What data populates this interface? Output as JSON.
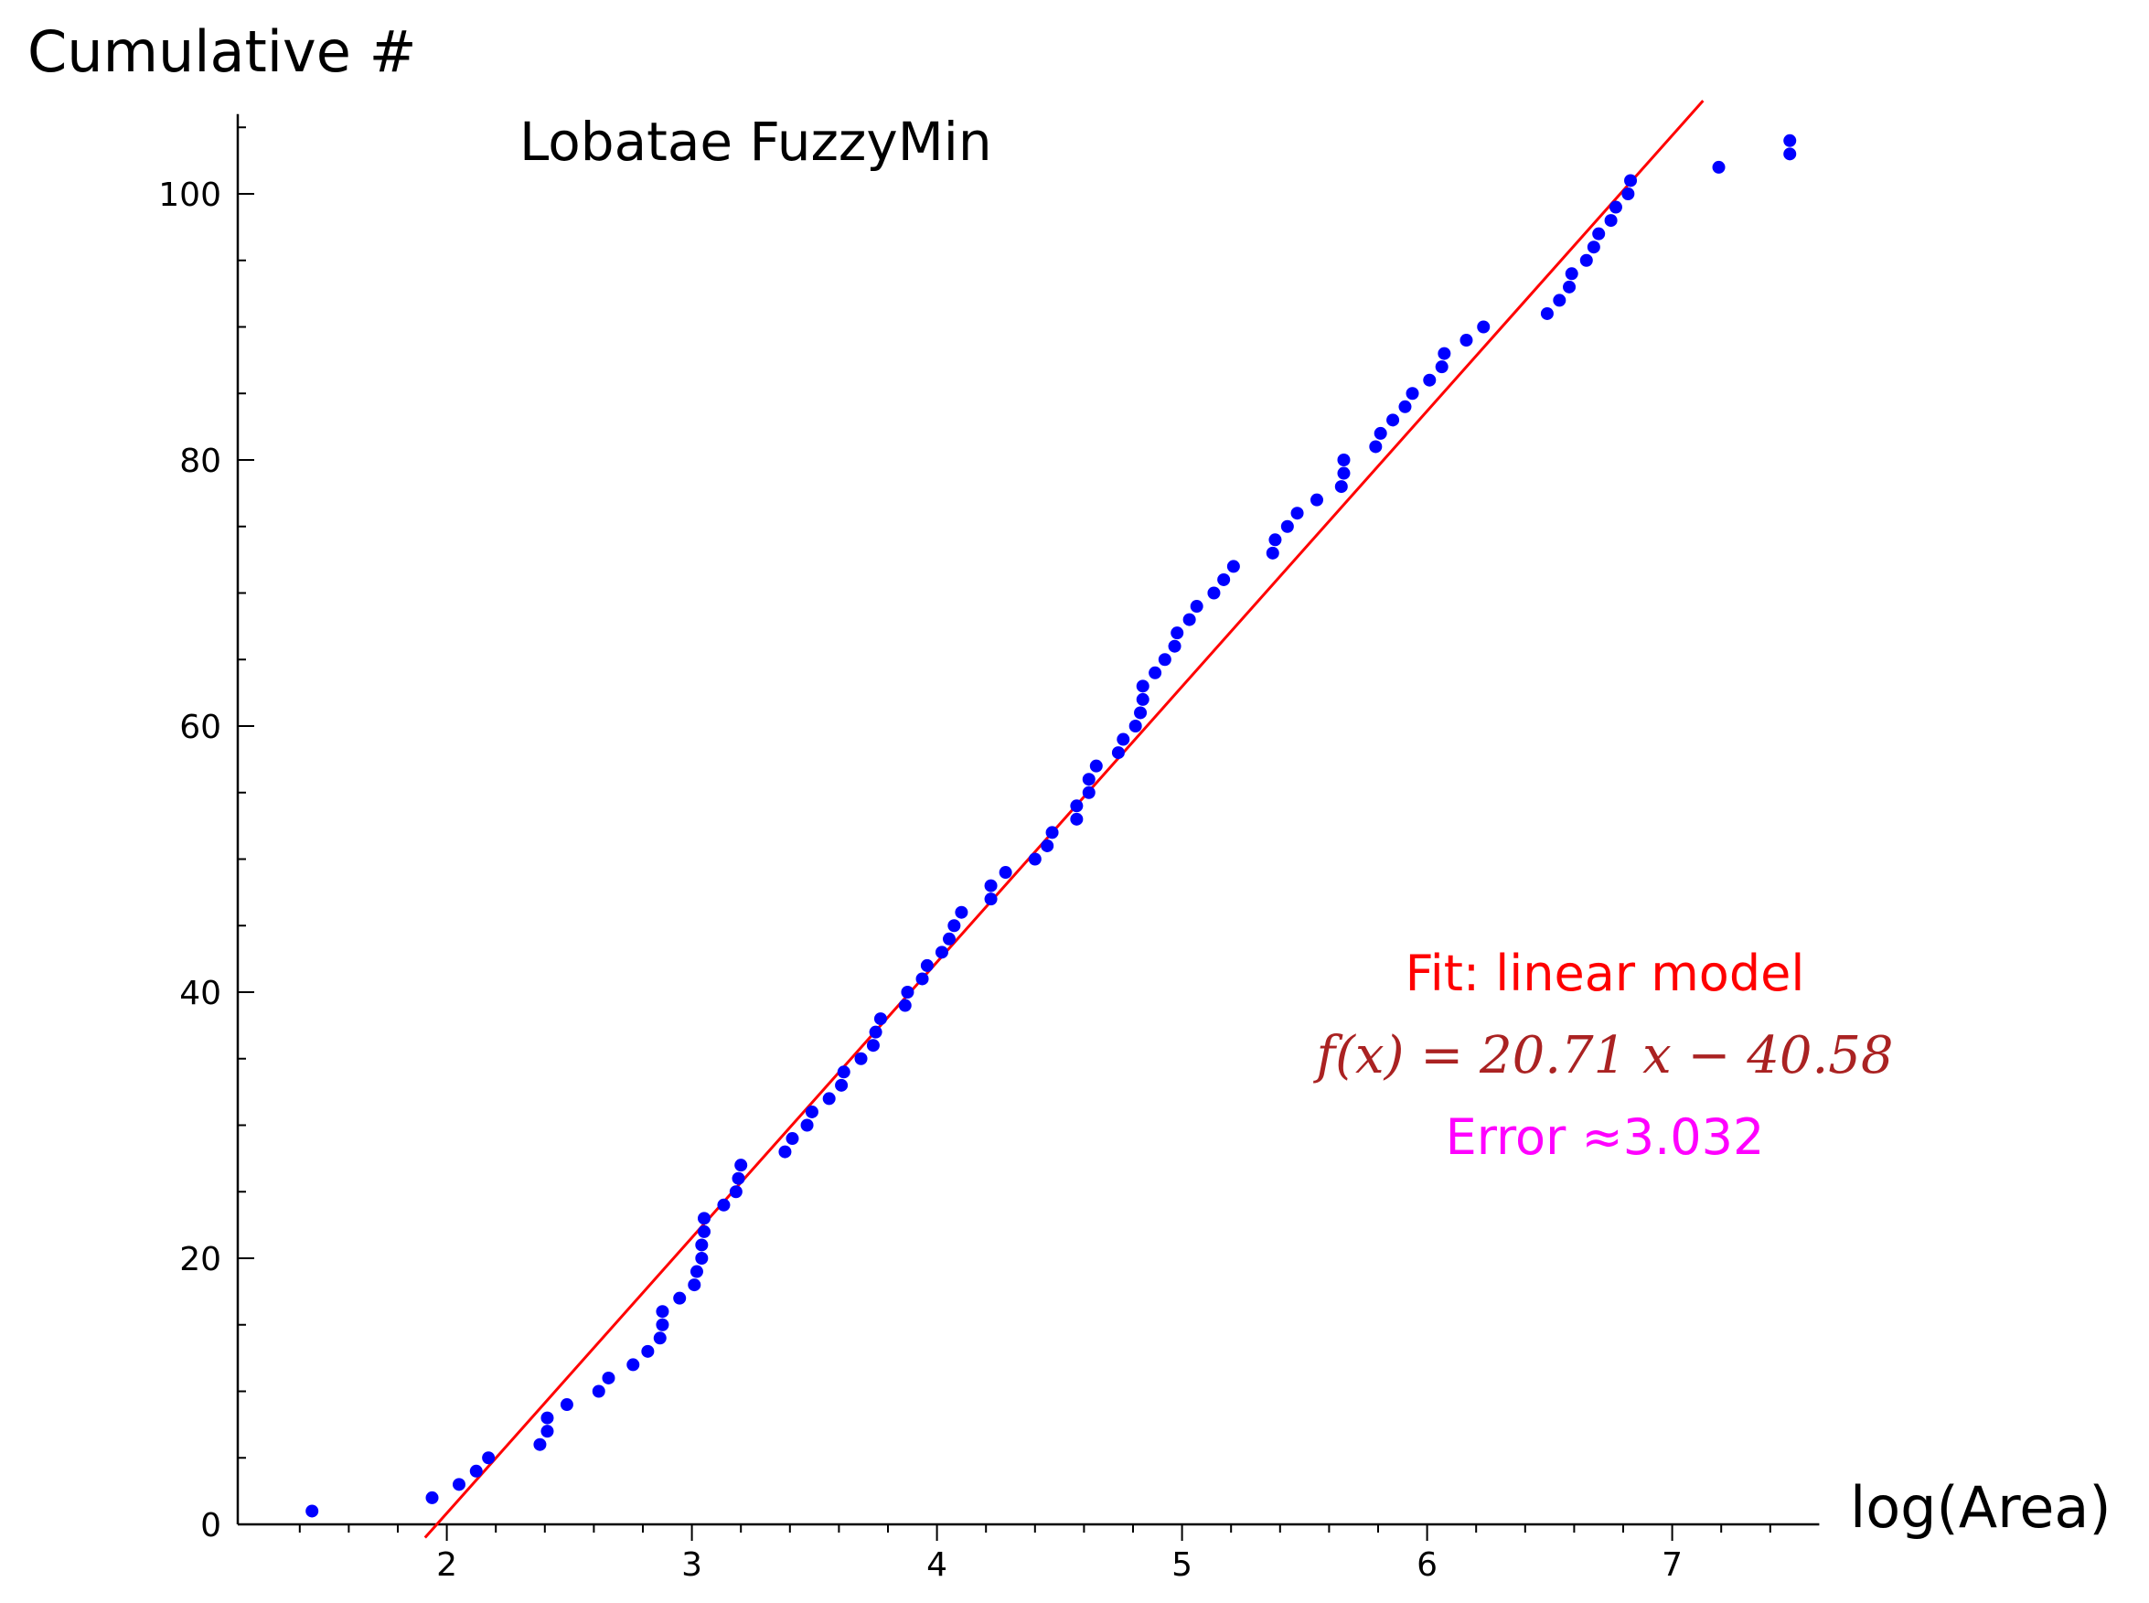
{
  "chart_data": {
    "type": "scatter",
    "title": "Lobatae FuzzyMin",
    "xlabel": "log(Area)",
    "ylabel": "Cumulative #",
    "xlim": [
      1.3,
      7.6
    ],
    "ylim": [
      0,
      106
    ],
    "x_ticks": [
      2,
      3,
      4,
      5,
      6,
      7
    ],
    "y_ticks": [
      0,
      20,
      40,
      60,
      80,
      100
    ],
    "grid": false,
    "colors": {
      "points": "#0000ff",
      "fit_line": "#ff0000",
      "fit_label": "#ff0000",
      "formula": "#aa2222",
      "error": "#ff00ff",
      "axes": "#000000"
    },
    "fit": {
      "label": "Fit: linear model",
      "formula": "f(x) = 20.71 x − 40.58",
      "slope": 20.71,
      "intercept": -40.58,
      "error_label": "Error ≈3.032"
    },
    "series": [
      {
        "points": [
          [
            1.45,
            1
          ],
          [
            1.94,
            2
          ],
          [
            2.05,
            3
          ],
          [
            2.12,
            4
          ],
          [
            2.17,
            5
          ],
          [
            2.38,
            6
          ],
          [
            2.41,
            7
          ],
          [
            2.41,
            8
          ],
          [
            2.49,
            9
          ],
          [
            2.62,
            10
          ],
          [
            2.66,
            11
          ],
          [
            2.76,
            12
          ],
          [
            2.82,
            13
          ],
          [
            2.87,
            14
          ],
          [
            2.88,
            15
          ],
          [
            2.88,
            16
          ],
          [
            2.95,
            17
          ],
          [
            3.01,
            18
          ],
          [
            3.02,
            19
          ],
          [
            3.04,
            20
          ],
          [
            3.04,
            21
          ],
          [
            3.05,
            22
          ],
          [
            3.05,
            23
          ],
          [
            3.13,
            24
          ],
          [
            3.18,
            25
          ],
          [
            3.19,
            26
          ],
          [
            3.2,
            27
          ],
          [
            3.38,
            28
          ],
          [
            3.41,
            29
          ],
          [
            3.47,
            30
          ],
          [
            3.49,
            31
          ],
          [
            3.56,
            32
          ],
          [
            3.61,
            33
          ],
          [
            3.62,
            34
          ],
          [
            3.69,
            35
          ],
          [
            3.74,
            36
          ],
          [
            3.75,
            37
          ],
          [
            3.77,
            38
          ],
          [
            3.87,
            39
          ],
          [
            3.88,
            40
          ],
          [
            3.94,
            41
          ],
          [
            3.96,
            42
          ],
          [
            4.02,
            43
          ],
          [
            4.05,
            44
          ],
          [
            4.07,
            45
          ],
          [
            4.1,
            46
          ],
          [
            4.22,
            47
          ],
          [
            4.22,
            48
          ],
          [
            4.28,
            49
          ],
          [
            4.4,
            50
          ],
          [
            4.45,
            51
          ],
          [
            4.47,
            52
          ],
          [
            4.57,
            53
          ],
          [
            4.57,
            54
          ],
          [
            4.62,
            55
          ],
          [
            4.62,
            56
          ],
          [
            4.65,
            57
          ],
          [
            4.74,
            58
          ],
          [
            4.76,
            59
          ],
          [
            4.81,
            60
          ],
          [
            4.83,
            61
          ],
          [
            4.84,
            62
          ],
          [
            4.84,
            63
          ],
          [
            4.89,
            64
          ],
          [
            4.93,
            65
          ],
          [
            4.97,
            66
          ],
          [
            4.98,
            67
          ],
          [
            5.03,
            68
          ],
          [
            5.06,
            69
          ],
          [
            5.13,
            70
          ],
          [
            5.17,
            71
          ],
          [
            5.21,
            72
          ],
          [
            5.37,
            73
          ],
          [
            5.38,
            74
          ],
          [
            5.43,
            75
          ],
          [
            5.47,
            76
          ],
          [
            5.55,
            77
          ],
          [
            5.65,
            78
          ],
          [
            5.66,
            79
          ],
          [
            5.66,
            80
          ],
          [
            5.79,
            81
          ],
          [
            5.81,
            82
          ],
          [
            5.86,
            83
          ],
          [
            5.91,
            84
          ],
          [
            5.94,
            85
          ],
          [
            6.01,
            86
          ],
          [
            6.06,
            87
          ],
          [
            6.07,
            88
          ],
          [
            6.16,
            89
          ],
          [
            6.23,
            90
          ],
          [
            6.49,
            91
          ],
          [
            6.54,
            92
          ],
          [
            6.58,
            93
          ],
          [
            6.59,
            94
          ],
          [
            6.65,
            95
          ],
          [
            6.68,
            96
          ],
          [
            6.7,
            97
          ],
          [
            6.75,
            98
          ],
          [
            6.77,
            99
          ],
          [
            6.82,
            100
          ],
          [
            6.83,
            101
          ],
          [
            7.19,
            102
          ],
          [
            7.48,
            103
          ],
          [
            7.48,
            104
          ]
        ]
      }
    ]
  }
}
